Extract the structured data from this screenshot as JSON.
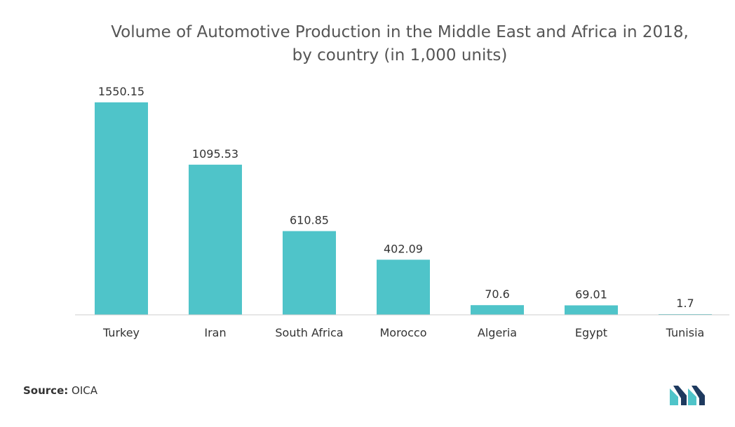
{
  "chart_data": {
    "type": "bar",
    "title": "Volume of Automotive Production in the Middle East and Africa in 2018,",
    "subtitle": "by country (in 1,000 units)",
    "categories": [
      "Turkey",
      "Iran",
      "South Africa",
      "Morocco",
      "Algeria",
      "Egypt",
      "Tunisia"
    ],
    "values": [
      1550.15,
      1095.53,
      610.85,
      402.09,
      70.6,
      69.01,
      1.7
    ],
    "data_labels": [
      "1550.15",
      "1095.53",
      "610.85",
      "402.09",
      "70.6",
      "69.01",
      "1.7"
    ],
    "xlabel": "",
    "ylabel": "",
    "ylim": [
      0,
      1550.15
    ],
    "grid": false,
    "legend": "none",
    "bar_color": "#4fc4c9"
  },
  "source": {
    "label": "Source:",
    "value": "OICA"
  },
  "colors": {
    "logo_dark": "#1e3a5f",
    "logo_teal": "#4fc4c9",
    "axis": "#cccccc"
  }
}
